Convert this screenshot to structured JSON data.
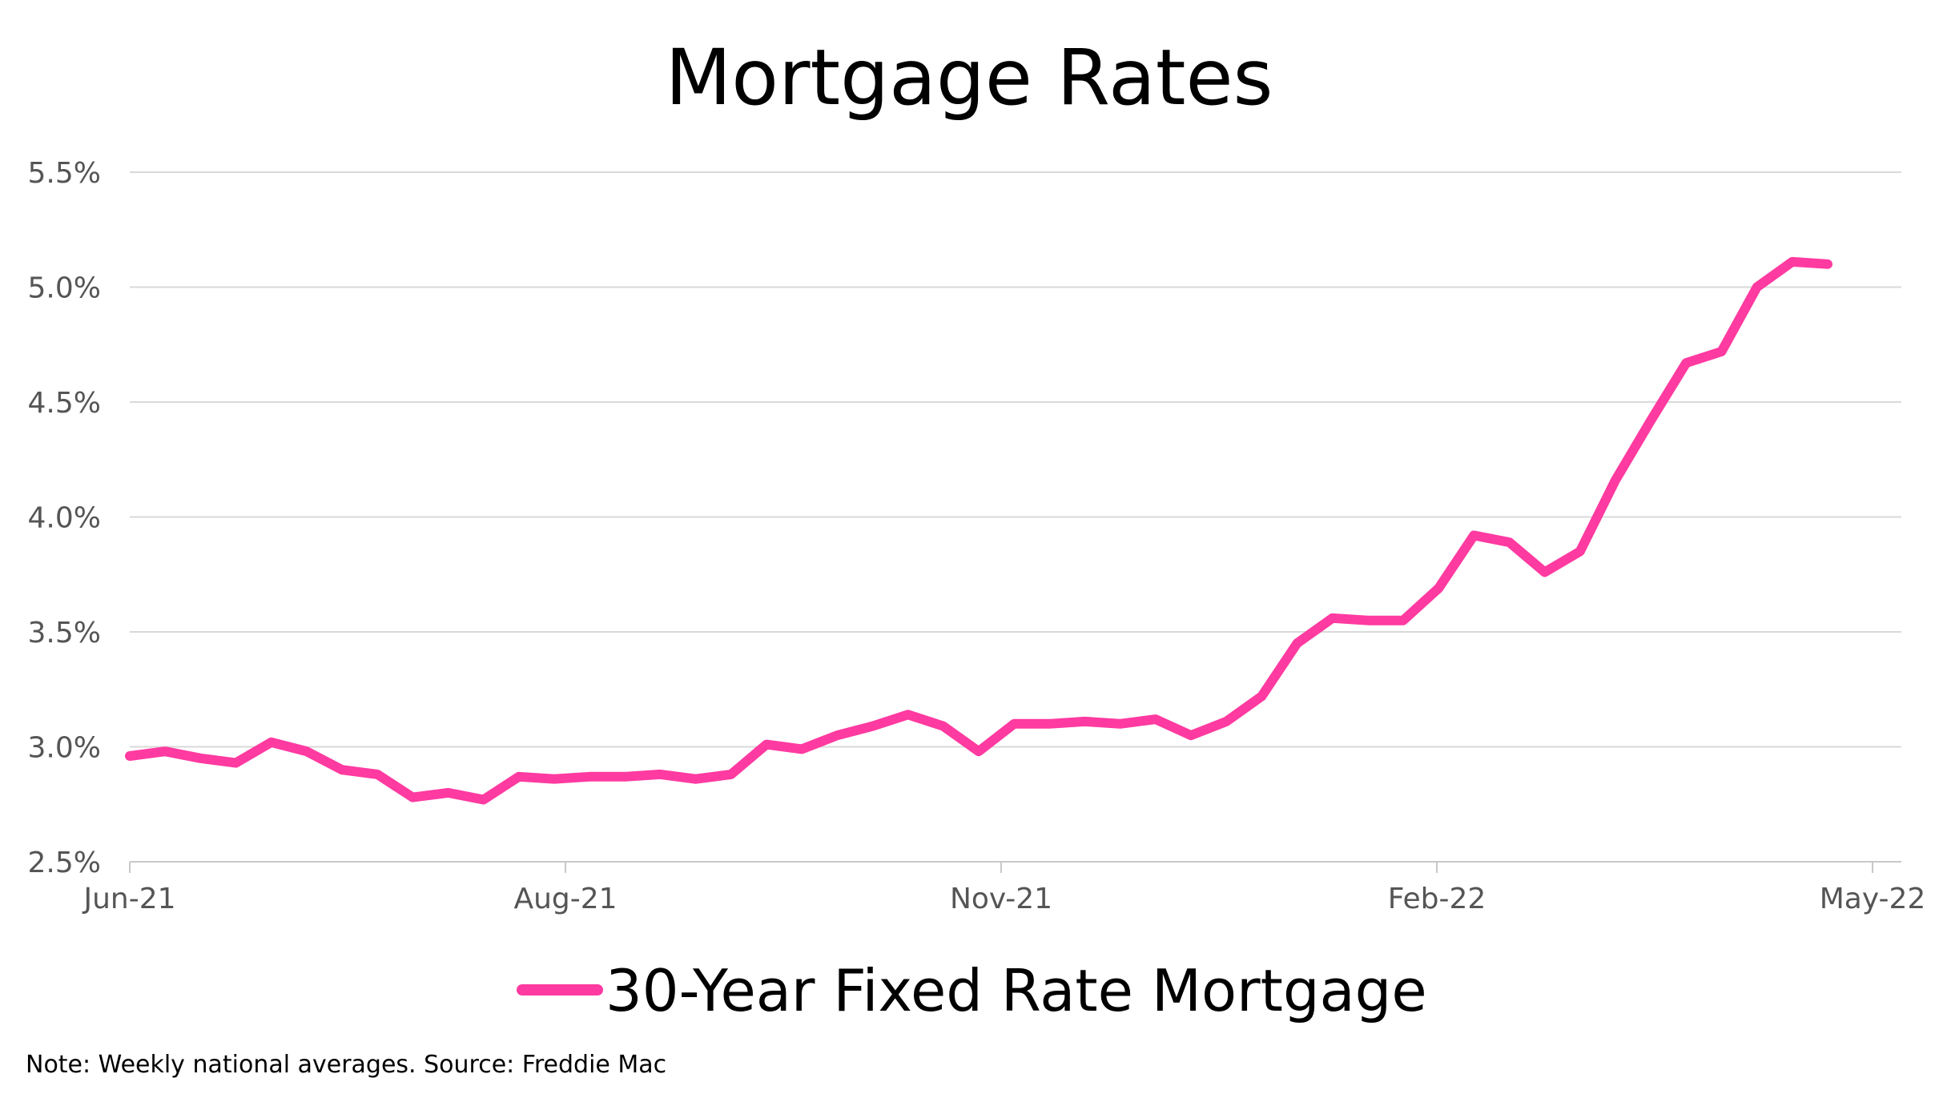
{
  "chart_data": {
    "type": "line",
    "title": "Mortgage Rates",
    "xlabel": "",
    "ylabel": "",
    "y_ticks": [
      "2.5%",
      "3.0%",
      "3.5%",
      "4.0%",
      "4.5%",
      "5.0%",
      "5.5%"
    ],
    "y_tick_values": [
      2.5,
      3.0,
      3.5,
      4.0,
      4.5,
      5.0,
      5.5
    ],
    "ylim": [
      2.5,
      5.5
    ],
    "x_ticks": [
      "Jun-21",
      "Aug-21",
      "Nov-21",
      "Feb-22",
      "May-22"
    ],
    "grid": "horizontal",
    "legend_position": "bottom",
    "series": [
      {
        "name": "30-Year Fixed Rate Mortgage",
        "color": "#ff3aa0",
        "values": [
          2.96,
          2.98,
          2.95,
          2.93,
          3.02,
          2.98,
          2.9,
          2.88,
          2.78,
          2.8,
          2.77,
          2.87,
          2.86,
          2.87,
          2.87,
          2.88,
          2.86,
          2.88,
          3.01,
          2.99,
          3.05,
          3.09,
          3.14,
          3.09,
          2.98,
          3.1,
          3.1,
          3.11,
          3.1,
          3.12,
          3.05,
          3.11,
          3.22,
          3.45,
          3.56,
          3.55,
          3.55,
          3.69,
          3.92,
          3.89,
          3.76,
          3.85,
          4.16,
          4.42,
          4.67,
          4.72,
          5.0,
          5.11,
          5.1
        ]
      }
    ]
  },
  "note": "Note: Weekly national averages. Source: Freddie Mac"
}
